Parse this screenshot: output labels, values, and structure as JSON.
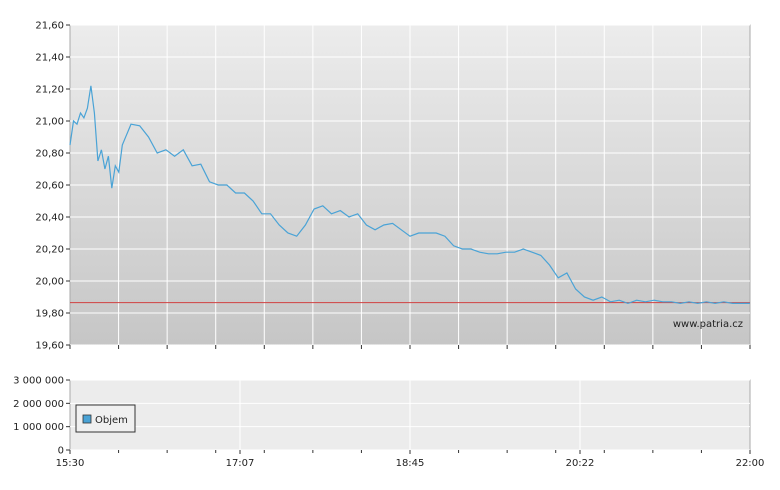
{
  "chart_data": [
    {
      "type": "line",
      "ylim": [
        19.6,
        21.6
      ],
      "yticks": [
        "21,60",
        "21,40",
        "21,20",
        "21,00",
        "20,80",
        "20,60",
        "20,40",
        "20,20",
        "20,00",
        "19,80",
        "19,60"
      ],
      "y_tick_values": [
        21.6,
        21.4,
        21.2,
        21.0,
        20.8,
        20.6,
        20.4,
        20.2,
        20.0,
        19.8,
        19.6
      ],
      "xlim": [
        "15:30",
        "22:00"
      ],
      "reference_line": {
        "value": 19.865,
        "color": "#d04040"
      },
      "series_color": "#4aa3d6",
      "grid": true,
      "background_gradient": [
        "#ececec",
        "#c6c6c6"
      ],
      "watermark": "www.patria.cz",
      "series": [
        {
          "x": [
            "15:30",
            "15:32",
            "15:34",
            "15:36",
            "15:38",
            "15:40",
            "15:42",
            "15:44",
            "15:46",
            "15:48",
            "15:50",
            "15:52",
            "15:54",
            "15:56",
            "15:58",
            "16:00",
            "16:05",
            "16:10",
            "16:15",
            "16:20",
            "16:25",
            "16:30",
            "16:35",
            "16:40",
            "16:45",
            "16:50",
            "16:55",
            "17:00",
            "17:05",
            "17:10",
            "17:15",
            "17:20",
            "17:25",
            "17:30",
            "17:35",
            "17:40",
            "17:45",
            "17:50",
            "17:55",
            "18:00",
            "18:05",
            "18:10",
            "18:15",
            "18:20",
            "18:25",
            "18:30",
            "18:35",
            "18:40",
            "18:45",
            "18:50",
            "18:55",
            "19:00",
            "19:05",
            "19:10",
            "19:15",
            "19:20",
            "19:25",
            "19:30",
            "19:35",
            "19:40",
            "19:45",
            "19:50",
            "19:55",
            "20:00",
            "20:05",
            "20:10",
            "20:15",
            "20:20",
            "20:25",
            "20:30",
            "20:35",
            "20:40",
            "20:45",
            "20:50",
            "20:55",
            "21:00",
            "21:05",
            "21:10",
            "21:15",
            "21:20",
            "21:25",
            "21:30",
            "21:35",
            "21:40",
            "21:45",
            "21:50",
            "21:52",
            "21:54",
            "21:56",
            "21:58",
            "22:00"
          ],
          "y": [
            20.85,
            21.0,
            20.98,
            21.05,
            21.02,
            21.08,
            21.22,
            21.05,
            20.75,
            20.82,
            20.7,
            20.78,
            20.58,
            20.72,
            20.68,
            20.85,
            20.98,
            20.97,
            20.9,
            20.8,
            20.82,
            20.78,
            20.82,
            20.72,
            20.73,
            20.62,
            20.6,
            20.6,
            20.55,
            20.55,
            20.5,
            20.42,
            20.42,
            20.35,
            20.3,
            20.28,
            20.35,
            20.45,
            20.47,
            20.42,
            20.44,
            20.4,
            20.42,
            20.35,
            20.32,
            20.35,
            20.36,
            20.32,
            20.28,
            20.3,
            20.3,
            20.3,
            20.28,
            20.22,
            20.2,
            20.2,
            20.18,
            20.17,
            20.17,
            20.18,
            20.18,
            20.2,
            20.18,
            20.16,
            20.1,
            20.02,
            20.05,
            19.95,
            19.9,
            19.88,
            19.9,
            19.87,
            19.88,
            19.86,
            19.88,
            19.87,
            19.88,
            19.87,
            19.87,
            19.86,
            19.87,
            19.86,
            19.87,
            19.86,
            19.87,
            19.86,
            19.86,
            19.86,
            19.86,
            19.86,
            19.86
          ]
        }
      ],
      "watermark_text": "www.patria.cz"
    },
    {
      "type": "bar",
      "ylim": [
        0,
        3000000
      ],
      "yticks": [
        "3 000 000",
        "2 000 000",
        "1 000 000",
        "0"
      ],
      "y_tick_values": [
        3000000,
        2000000,
        1000000,
        0
      ],
      "xticks": [
        "15:30",
        "17:07",
        "18:45",
        "20:22",
        "22:00"
      ],
      "legend": "Objem",
      "legend_color": "#4aa3d6",
      "series": [
        {
          "name": "Objem",
          "values": [
            0,
            0,
            0,
            0,
            0
          ]
        }
      ]
    }
  ]
}
